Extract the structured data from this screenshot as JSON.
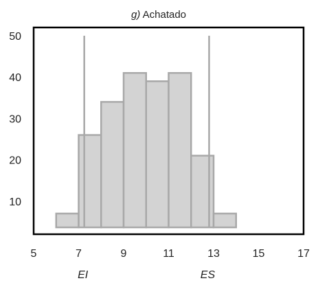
{
  "chart_data": {
    "type": "bar",
    "title_prefix": "g)",
    "title_text": " Achatado",
    "x_ticks": [
      5,
      7,
      9,
      11,
      13,
      15,
      17
    ],
    "y_ticks": [
      10,
      20,
      30,
      40,
      50
    ],
    "xlim": [
      5,
      17
    ],
    "ylim": [
      2,
      52
    ],
    "bins": [
      {
        "x0": 6,
        "x1": 7,
        "value": 7
      },
      {
        "x0": 7,
        "x1": 8,
        "value": 26
      },
      {
        "x0": 8,
        "x1": 9,
        "value": 34
      },
      {
        "x0": 9,
        "x1": 10,
        "value": 41
      },
      {
        "x0": 10,
        "x1": 11,
        "value": 39
      },
      {
        "x0": 11,
        "x1": 12,
        "value": 41
      },
      {
        "x0": 12,
        "x1": 13,
        "value": 21
      },
      {
        "x0": 13,
        "x1": 14,
        "value": 7
      }
    ],
    "baseline_segment": {
      "x0": 14,
      "x1": 16.7,
      "value": 3.5
    },
    "spec_lines": [
      {
        "label": "EI",
        "x": 7.25
      },
      {
        "label": "ES",
        "x": 12.8
      }
    ],
    "colors": {
      "bar_fill": "#d3d3d3",
      "bar_stroke": "#a8a8a8",
      "frame": "#000000",
      "line": "#a8a8a8"
    },
    "grid": false,
    "legend": "none"
  }
}
